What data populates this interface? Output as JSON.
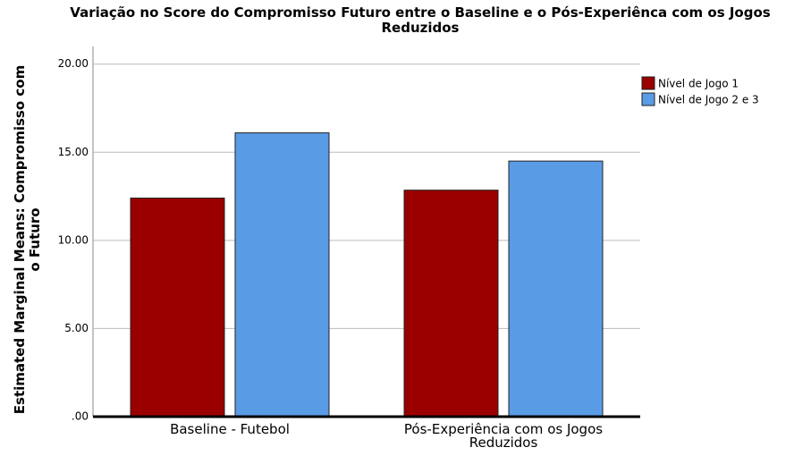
{
  "chart_data": {
    "type": "bar",
    "title": "Variação no Score do Compromisso Futuro entre o Baseline e o Pós-Experiênca com os Jogos Reduzidos",
    "y_label": "Estimated Marginal Means: Compromisso com o Futuro",
    "categories": [
      "Baseline - Futebol",
      "Pós-Experiência com os Jogos Reduzidos"
    ],
    "series": [
      {
        "name": "Nível de Jogo 1",
        "color": "#9b0000",
        "values": [
          12.4,
          12.85
        ]
      },
      {
        "name": "Nível de Jogo 2 e 3",
        "color": "#5a9be6",
        "values": [
          16.1,
          14.5
        ]
      }
    ],
    "ylim": [
      0,
      21
    ],
    "yticks": [
      {
        "value": 0,
        "label": ".00"
      },
      {
        "value": 5,
        "label": "5.00"
      },
      {
        "value": 10,
        "label": "10.00"
      },
      {
        "value": 15,
        "label": "15.00"
      },
      {
        "value": 20,
        "label": "20.00"
      }
    ],
    "grid": true,
    "legend": "right"
  }
}
